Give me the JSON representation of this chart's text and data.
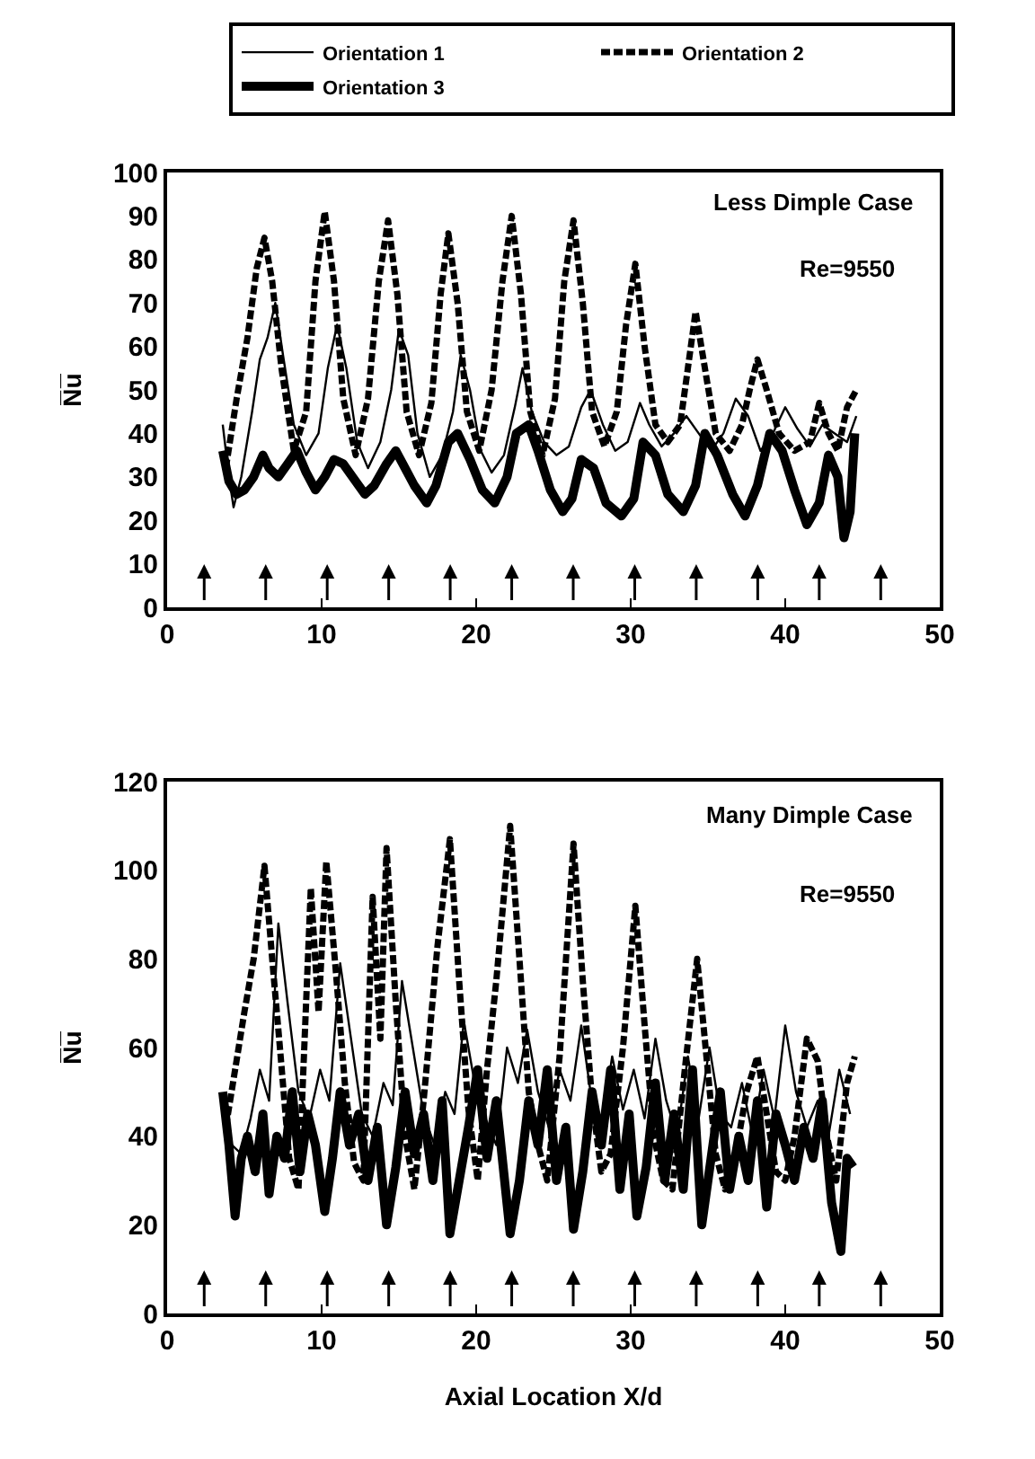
{
  "chart_data": [
    {
      "type": "line",
      "ylabel": "N̅u̅",
      "legend": "top",
      "grid": false,
      "xlim": [
        0,
        50
      ],
      "xticks": [
        0,
        10,
        20,
        30,
        40,
        50
      ],
      "ylim": [
        0,
        100
      ],
      "yticks": [
        0,
        10,
        20,
        30,
        40,
        50,
        60,
        70,
        80,
        90,
        100
      ],
      "annotations": [
        "Less Dimple Case",
        "Re=9550"
      ],
      "series": [
        {
          "name": "Orientation 1",
          "color": "#000000",
          "line_style": "solid",
          "x": [
            3.6,
            4.0,
            4.3,
            4.8,
            5.5,
            6.0,
            6.5,
            7.0,
            7.5,
            8.2,
            9.0,
            9.8,
            10.4,
            11.0,
            11.6,
            12.3,
            13.0,
            13.8,
            14.5,
            15.0,
            15.6,
            16.2,
            17.0,
            17.8,
            18.5,
            19.0,
            19.6,
            20.3,
            21.0,
            21.8,
            22.5,
            23.0,
            23.6,
            24.4,
            25.2,
            26.0,
            26.8,
            27.4,
            28.2,
            29.0,
            29.8,
            30.6,
            31.2,
            32.0,
            32.8,
            33.6,
            34.4,
            35.2,
            36.0,
            36.8,
            37.6,
            38.4,
            39.2,
            40.0,
            40.8,
            41.6,
            42.4,
            43.2,
            44.0,
            44.6
          ],
          "values": [
            42,
            30,
            23,
            30,
            45,
            57,
            62,
            70,
            58,
            42,
            35,
            40,
            55,
            65,
            55,
            38,
            32,
            38,
            50,
            64,
            58,
            40,
            30,
            35,
            45,
            58,
            50,
            36,
            31,
            35,
            46,
            55,
            45,
            38,
            35,
            37,
            46,
            50,
            42,
            36,
            38,
            47,
            42,
            37,
            40,
            44,
            40,
            36,
            40,
            48,
            44,
            36,
            40,
            46,
            41,
            37,
            42,
            40,
            38,
            44
          ]
        },
        {
          "name": "Orientation 2",
          "color": "#000000",
          "line_style": "dashed",
          "x": [
            3.8,
            4.5,
            5.2,
            5.8,
            6.3,
            6.8,
            7.4,
            8.2,
            9.0,
            9.6,
            10.2,
            10.8,
            11.4,
            12.2,
            13.0,
            13.7,
            14.3,
            14.9,
            15.5,
            16.3,
            17.1,
            17.7,
            18.2,
            18.8,
            19.4,
            20.2,
            21.0,
            21.7,
            22.3,
            22.9,
            23.5,
            24.3,
            25.1,
            25.7,
            26.3,
            26.9,
            27.5,
            28.3,
            29.1,
            29.7,
            30.3,
            30.9,
            31.6,
            32.4,
            33.2,
            33.7,
            34.2,
            34.8,
            35.5,
            36.4,
            37.2,
            37.7,
            38.2,
            38.8,
            39.6,
            40.6,
            41.6,
            42.2,
            42.8,
            43.4,
            44.0,
            44.6
          ],
          "values": [
            32,
            48,
            62,
            78,
            85,
            75,
            55,
            36,
            45,
            75,
            91,
            75,
            48,
            35,
            48,
            75,
            89,
            72,
            45,
            35,
            47,
            72,
            86,
            70,
            45,
            36,
            50,
            75,
            90,
            72,
            45,
            35,
            48,
            75,
            89,
            70,
            45,
            37,
            45,
            65,
            79,
            60,
            42,
            38,
            42,
            55,
            68,
            55,
            40,
            36,
            42,
            50,
            57,
            50,
            40,
            36,
            38,
            47,
            40,
            36,
            46,
            50
          ]
        },
        {
          "name": "Orientation 3",
          "color": "#000000",
          "line_style": "solid",
          "x": [
            3.6,
            4.0,
            4.5,
            5.0,
            5.6,
            6.2,
            6.6,
            7.2,
            7.8,
            8.4,
            9.0,
            9.6,
            10.2,
            10.8,
            11.4,
            12.0,
            12.8,
            13.4,
            14.2,
            14.8,
            15.4,
            16.0,
            16.8,
            17.4,
            18.2,
            18.8,
            19.6,
            20.4,
            21.2,
            22.0,
            22.6,
            23.4,
            24.0,
            24.8,
            25.6,
            26.2,
            26.8,
            27.6,
            28.4,
            29.4,
            30.2,
            30.8,
            31.6,
            32.4,
            33.4,
            34.2,
            34.8,
            35.6,
            36.6,
            37.4,
            38.2,
            39.0,
            39.8,
            40.6,
            41.4,
            42.2,
            42.8,
            43.4,
            43.8,
            44.2,
            44.5
          ],
          "values": [
            36,
            29,
            26,
            27,
            30,
            35,
            32,
            30,
            33,
            36,
            31,
            27,
            30,
            34,
            33,
            30,
            26,
            28,
            33,
            36,
            32,
            28,
            24,
            28,
            38,
            40,
            34,
            27,
            24,
            30,
            40,
            42,
            36,
            27,
            22,
            25,
            34,
            32,
            24,
            21,
            25,
            38,
            35,
            26,
            22,
            28,
            40,
            35,
            26,
            21,
            28,
            40,
            36,
            27,
            19,
            24,
            35,
            30,
            16,
            22,
            40
          ]
        }
      ]
    },
    {
      "type": "line",
      "xlabel": "Axial Location X/d",
      "ylabel": "N̅u̅",
      "grid": false,
      "xlim": [
        0,
        50
      ],
      "xticks": [
        0,
        10,
        20,
        30,
        40,
        50
      ],
      "ylim": [
        0,
        120
      ],
      "yticks": [
        0,
        20,
        40,
        60,
        80,
        100,
        120
      ],
      "annotations": [
        "Many Dimple Case",
        "Re=9550"
      ],
      "series": [
        {
          "color": "#000000",
          "line_style": "solid",
          "x": [
            3.6,
            4.2,
            4.8,
            5.4,
            6.0,
            6.6,
            7.2,
            7.8,
            8.5,
            9.2,
            9.9,
            10.5,
            11.2,
            11.9,
            12.6,
            13.3,
            14.0,
            14.6,
            15.2,
            15.9,
            16.6,
            17.3,
            18.0,
            18.6,
            19.2,
            19.9,
            20.6,
            21.3,
            22.0,
            22.7,
            23.3,
            24.0,
            24.7,
            25.4,
            26.1,
            26.8,
            27.4,
            28.1,
            28.8,
            29.5,
            30.2,
            30.9,
            31.6,
            32.3,
            33.0,
            33.7,
            34.4,
            35.1,
            35.8,
            36.5,
            37.2,
            37.9,
            38.6,
            39.3,
            40.0,
            40.7,
            41.4,
            42.1,
            42.8,
            43.5,
            44.2
          ],
          "values": [
            45,
            38,
            36,
            44,
            55,
            48,
            88,
            70,
            50,
            44,
            55,
            48,
            79,
            62,
            45,
            40,
            52,
            47,
            75,
            60,
            45,
            38,
            50,
            45,
            66,
            52,
            44,
            38,
            60,
            52,
            64,
            50,
            42,
            55,
            48,
            65,
            50,
            42,
            58,
            46,
            55,
            44,
            62,
            48,
            40,
            58,
            44,
            60,
            45,
            42,
            52,
            40,
            55,
            44,
            65,
            50,
            42,
            48,
            40,
            55,
            45
          ]
        },
        {
          "color": "#000000",
          "line_style": "dashed",
          "x": [
            3.8,
            4.4,
            5.0,
            5.6,
            6.3,
            6.8,
            7.3,
            7.9,
            8.5,
            9.3,
            9.8,
            10.3,
            10.9,
            11.5,
            12.1,
            12.7,
            13.3,
            13.8,
            14.2,
            14.8,
            15.4,
            16.0,
            16.6,
            17.5,
            18.3,
            18.9,
            19.5,
            20.1,
            20.7,
            21.3,
            22.2,
            22.8,
            23.4,
            24.0,
            24.6,
            25.4,
            26.3,
            26.9,
            27.5,
            28.1,
            28.7,
            29.5,
            30.3,
            30.9,
            31.5,
            32.1,
            32.7,
            33.5,
            34.3,
            34.9,
            35.5,
            36.1,
            36.7,
            37.5,
            38.2,
            38.8,
            39.4,
            40.0,
            40.6,
            41.4,
            42.1,
            42.7,
            43.3,
            44.0,
            44.5
          ],
          "values": [
            42,
            55,
            68,
            80,
            101,
            80,
            60,
            35,
            28,
            96,
            68,
            102,
            78,
            52,
            34,
            30,
            94,
            62,
            105,
            70,
            40,
            28,
            48,
            83,
            107,
            75,
            46,
            30,
            55,
            75,
            110,
            80,
            50,
            38,
            30,
            58,
            106,
            75,
            48,
            32,
            36,
            60,
            92,
            65,
            40,
            30,
            28,
            55,
            80,
            58,
            36,
            28,
            34,
            50,
            58,
            45,
            32,
            30,
            40,
            62,
            57,
            40,
            30,
            52,
            58
          ]
        },
        {
          "color": "#000000",
          "line_style": "solid",
          "x": [
            3.6,
            4.0,
            4.4,
            4.8,
            5.2,
            5.7,
            6.2,
            6.6,
            7.1,
            7.6,
            8.1,
            8.6,
            9.1,
            9.6,
            10.2,
            10.7,
            11.2,
            11.8,
            12.4,
            13.0,
            13.6,
            14.2,
            14.8,
            15.4,
            16.0,
            16.6,
            17.2,
            17.8,
            18.3,
            18.9,
            19.5,
            20.1,
            20.7,
            21.3,
            22.2,
            22.8,
            23.4,
            24.0,
            24.6,
            25.2,
            25.8,
            26.3,
            26.9,
            27.5,
            28.1,
            28.7,
            29.3,
            29.9,
            30.4,
            31.0,
            31.6,
            32.2,
            32.8,
            33.4,
            34.0,
            34.6,
            35.2,
            35.8,
            36.4,
            37.0,
            37.6,
            38.2,
            38.8,
            39.4,
            40.0,
            40.6,
            41.2,
            41.8,
            42.4,
            43.0,
            43.6,
            44.0,
            44.4
          ],
          "values": [
            50,
            38,
            22,
            35,
            40,
            32,
            45,
            27,
            40,
            35,
            50,
            32,
            45,
            38,
            23,
            35,
            50,
            38,
            45,
            30,
            42,
            20,
            33,
            50,
            36,
            45,
            30,
            48,
            18,
            30,
            42,
            55,
            35,
            48,
            18,
            30,
            48,
            38,
            55,
            30,
            42,
            19,
            32,
            50,
            38,
            55,
            28,
            45,
            22,
            33,
            52,
            30,
            45,
            28,
            55,
            20,
            35,
            50,
            28,
            40,
            30,
            48,
            24,
            45,
            38,
            30,
            42,
            35,
            48,
            25,
            14,
            35,
            33
          ]
        }
      ]
    }
  ]
}
